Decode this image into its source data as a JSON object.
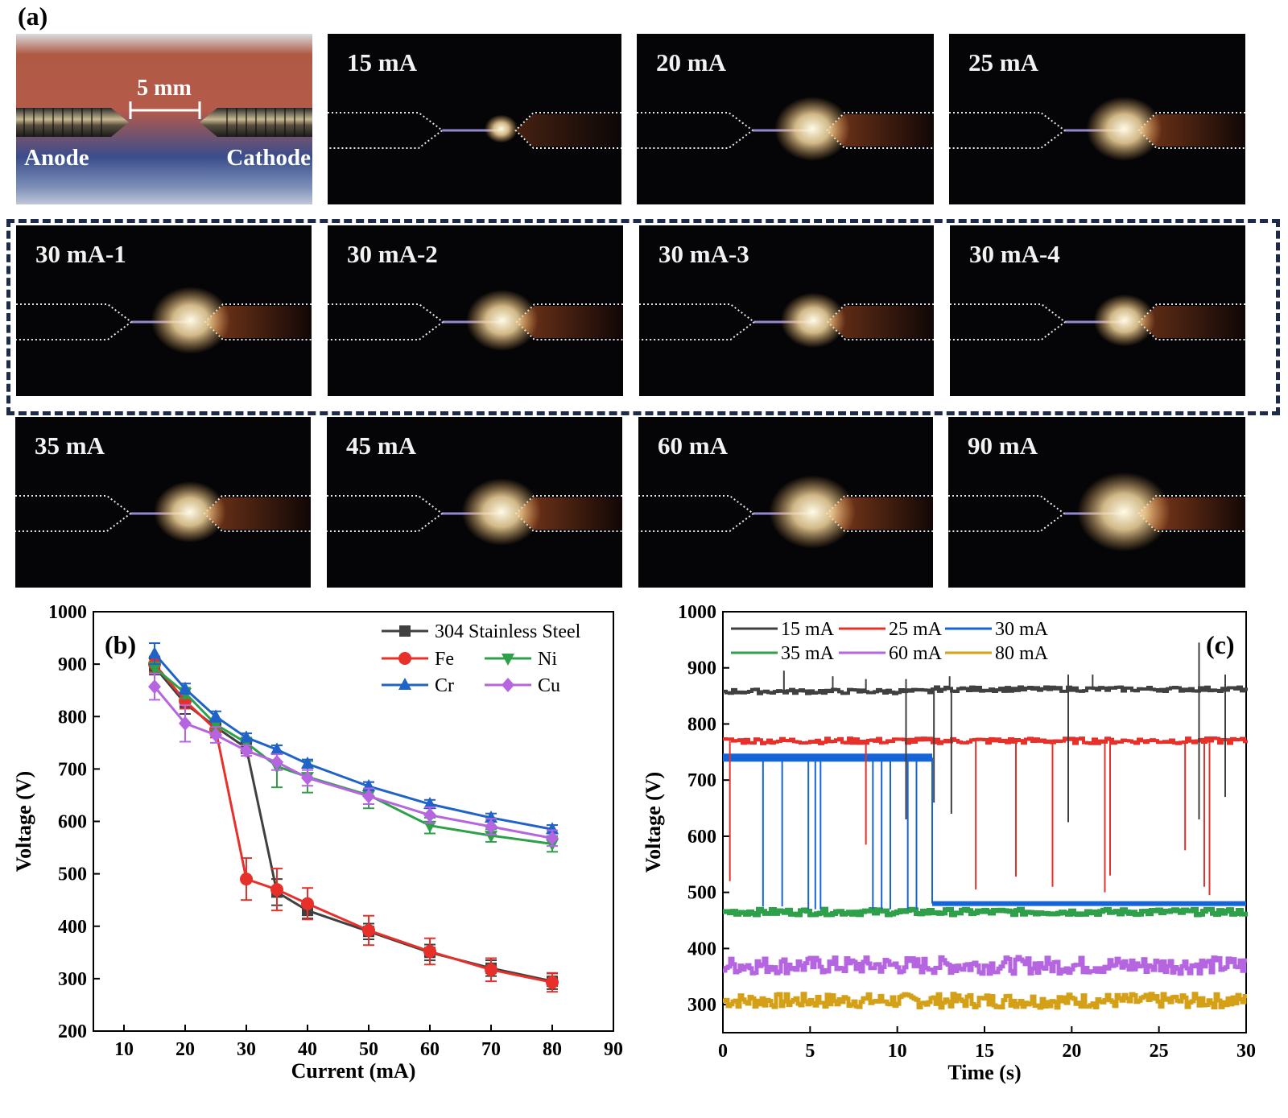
{
  "panel_a": {
    "label": "(a)",
    "setup": {
      "gap_label": "5 mm",
      "anode_label": "Anode",
      "cathode_label": "Cathode"
    },
    "photos": [
      {
        "caption": "15 mA",
        "level": 0.15
      },
      {
        "caption": "20 mA",
        "level": 0.75
      },
      {
        "caption": "25 mA",
        "level": 0.75
      },
      {
        "caption": "30 mA-1",
        "level": 0.8
      },
      {
        "caption": "30 mA-2",
        "level": 0.7
      },
      {
        "caption": "30 mA-3",
        "level": 0.6
      },
      {
        "caption": "30 mA-4",
        "level": 0.55
      },
      {
        "caption": "35 mA",
        "level": 0.7
      },
      {
        "caption": "45 mA",
        "level": 0.8
      },
      {
        "caption": "60 mA",
        "level": 0.9
      },
      {
        "caption": "90 mA",
        "level": 1.0
      }
    ]
  },
  "chart_data": [
    {
      "type": "line",
      "panel_label": "(b)",
      "xlabel": "Current (mA)",
      "ylabel": "Voltage (V)",
      "xlim": [
        5,
        90
      ],
      "ylim": [
        200,
        1000
      ],
      "xticks": [
        10,
        20,
        30,
        40,
        50,
        60,
        70,
        80,
        90
      ],
      "yticks": [
        200,
        300,
        400,
        500,
        600,
        700,
        800,
        900,
        1000
      ],
      "legend_position": "top-right",
      "x": [
        15,
        20,
        25,
        30,
        35,
        40,
        50,
        60,
        70,
        80
      ],
      "series": [
        {
          "name": "304 Stainless Steel",
          "color": "#404040",
          "marker": "square",
          "values": [
            895,
            825,
            780,
            740,
            465,
            430,
            390,
            350,
            320,
            295
          ],
          "errors": [
            15,
            20,
            10,
            10,
            25,
            15,
            15,
            15,
            15,
            15
          ]
        },
        {
          "name": "Fe",
          "color": "#e8302a",
          "marker": "circle",
          "values": [
            900,
            830,
            775,
            490,
            470,
            443,
            392,
            352,
            317,
            293
          ],
          "errors": [
            15,
            15,
            15,
            40,
            40,
            30,
            28,
            25,
            22,
            18
          ]
        },
        {
          "name": "Ni",
          "color": "#2ea04a",
          "marker": "triangle-down",
          "values": [
            893,
            845,
            785,
            750,
            705,
            685,
            650,
            592,
            573,
            557
          ],
          "errors": [
            10,
            10,
            10,
            10,
            40,
            30,
            25,
            15,
            12,
            15
          ]
        },
        {
          "name": "Cr",
          "color": "#1f63c9",
          "marker": "triangle-up",
          "values": [
            920,
            853,
            800,
            760,
            737,
            710,
            667,
            633,
            607,
            585
          ],
          "errors": [
            20,
            10,
            10,
            8,
            8,
            8,
            8,
            8,
            8,
            8
          ]
        },
        {
          "name": "Cu",
          "color": "#b665e0",
          "marker": "diamond",
          "values": [
            857,
            787,
            765,
            735,
            713,
            683,
            648,
            612,
            590,
            568
          ],
          "errors": [
            25,
            35,
            15,
            10,
            15,
            15,
            15,
            15,
            15,
            15
          ]
        }
      ]
    },
    {
      "type": "line",
      "panel_label": "(c)",
      "xlabel": "Time (s)",
      "ylabel": "Voltage (V)",
      "xlim": [
        0,
        30
      ],
      "ylim": [
        250,
        1000
      ],
      "xticks": [
        0,
        5,
        10,
        15,
        20,
        25,
        30
      ],
      "yticks": [
        300,
        400,
        500,
        600,
        700,
        800,
        900,
        1000
      ],
      "legend_position": "top-left",
      "series": [
        {
          "name": "15 mA",
          "color": "#404040",
          "baseline": 858,
          "plateau": {
            "from": 12,
            "to": 30,
            "value": 862
          },
          "spikes_up": [
            [
              3.5,
              895
            ],
            [
              6.3,
              885
            ],
            [
              8.2,
              880
            ],
            [
              10.5,
              880
            ],
            [
              13,
              885
            ],
            [
              19.8,
              888
            ],
            [
              21.2,
              888
            ],
            [
              27.3,
              945
            ],
            [
              28.8,
              888
            ]
          ],
          "spikes_down": [
            [
              10.5,
              630
            ],
            [
              12.1,
              660
            ],
            [
              13.1,
              640
            ],
            [
              19.8,
              625
            ],
            [
              27.3,
              630
            ],
            [
              28.8,
              670
            ]
          ]
        },
        {
          "name": "25 mA",
          "color": "#e8302a",
          "baseline": 770,
          "spikes_down": [
            [
              0.4,
              520
            ],
            [
              8.2,
              585
            ],
            [
              14.5,
              505
            ],
            [
              16.8,
              528
            ],
            [
              18.9,
              510
            ],
            [
              21.9,
              500
            ],
            [
              22.2,
              530
            ],
            [
              26.5,
              575
            ],
            [
              27.6,
              510
            ],
            [
              27.9,
              495
            ]
          ]
        },
        {
          "name": "30 mA",
          "color": "#1565d8",
          "high": 740,
          "low": 480,
          "switch_time": 12,
          "spikes_down": [
            [
              2.3,
              475
            ],
            [
              3.4,
              475
            ],
            [
              4.9,
              470
            ],
            [
              5.3,
              470
            ],
            [
              5.6,
              470
            ],
            [
              8.6,
              470
            ],
            [
              9.1,
              470
            ],
            [
              9.6,
              470
            ],
            [
              10.6,
              470
            ],
            [
              11.1,
              470
            ]
          ]
        },
        {
          "name": "35 mA",
          "color": "#2ea04a",
          "baseline": 465
        },
        {
          "name": "60 mA",
          "color": "#b665e0",
          "baseline": 370,
          "noise": 30
        },
        {
          "name": "80 mA",
          "color": "#d4a017",
          "baseline": 307,
          "noise": 25
        }
      ]
    }
  ]
}
